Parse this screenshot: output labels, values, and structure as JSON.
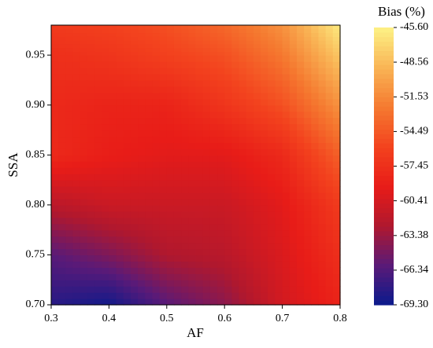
{
  "chart_data": {
    "type": "heatmap",
    "x_label": "AF",
    "y_label": "SSA",
    "colorbar_title": "Bias (%)",
    "x": [
      0.3,
      0.4,
      0.5,
      0.6,
      0.7,
      0.8
    ],
    "y": [
      0.7,
      0.75,
      0.8,
      0.85,
      0.9,
      0.95,
      0.98
    ],
    "z": [
      [
        -68,
        -69,
        -66,
        -64,
        -60.5,
        -58.5
      ],
      [
        -66,
        -64.5,
        -62.5,
        -62,
        -60,
        -57.5
      ],
      [
        -62,
        -61,
        -61,
        -61,
        -59.5,
        -56.5
      ],
      [
        -58,
        -59,
        -59.5,
        -59.5,
        -58,
        -54
      ],
      [
        -58,
        -58.5,
        -58.5,
        -57,
        -55,
        -51
      ],
      [
        -57.5,
        -57,
        -56,
        -55,
        -52.5,
        -48
      ],
      [
        -56.5,
        -56,
        -55,
        -53.5,
        -51,
        -46
      ]
    ],
    "xlim": [
      0.3,
      0.8
    ],
    "xticks": [
      0.3,
      0.4,
      0.5,
      0.6,
      0.7,
      0.8
    ],
    "ylim": [
      0.7,
      0.98
    ],
    "yticks": [
      {
        "value": 0.7,
        "label": "0.70"
      },
      0.75,
      {
        "value": 0.8,
        "label": "0.80"
      },
      0.85,
      {
        "value": 0.9,
        "label": "0.90"
      },
      0.95
    ],
    "zlim": [
      -69.3,
      -45.6
    ],
    "zticks": [
      {
        "value": -45.6,
        "label": "-45.60"
      },
      -48.56,
      -51.53,
      -54.49,
      -57.45,
      -60.41,
      -63.38,
      -66.34,
      {
        "value": -69.3,
        "label": "-69.30"
      }
    ],
    "colors": [
      "#0a1a8c",
      "#5a1a78",
      "#b0182e",
      "#e81c18",
      "#f3431e",
      "#f57a30",
      "#f9b455",
      "#fdf285"
    ]
  }
}
